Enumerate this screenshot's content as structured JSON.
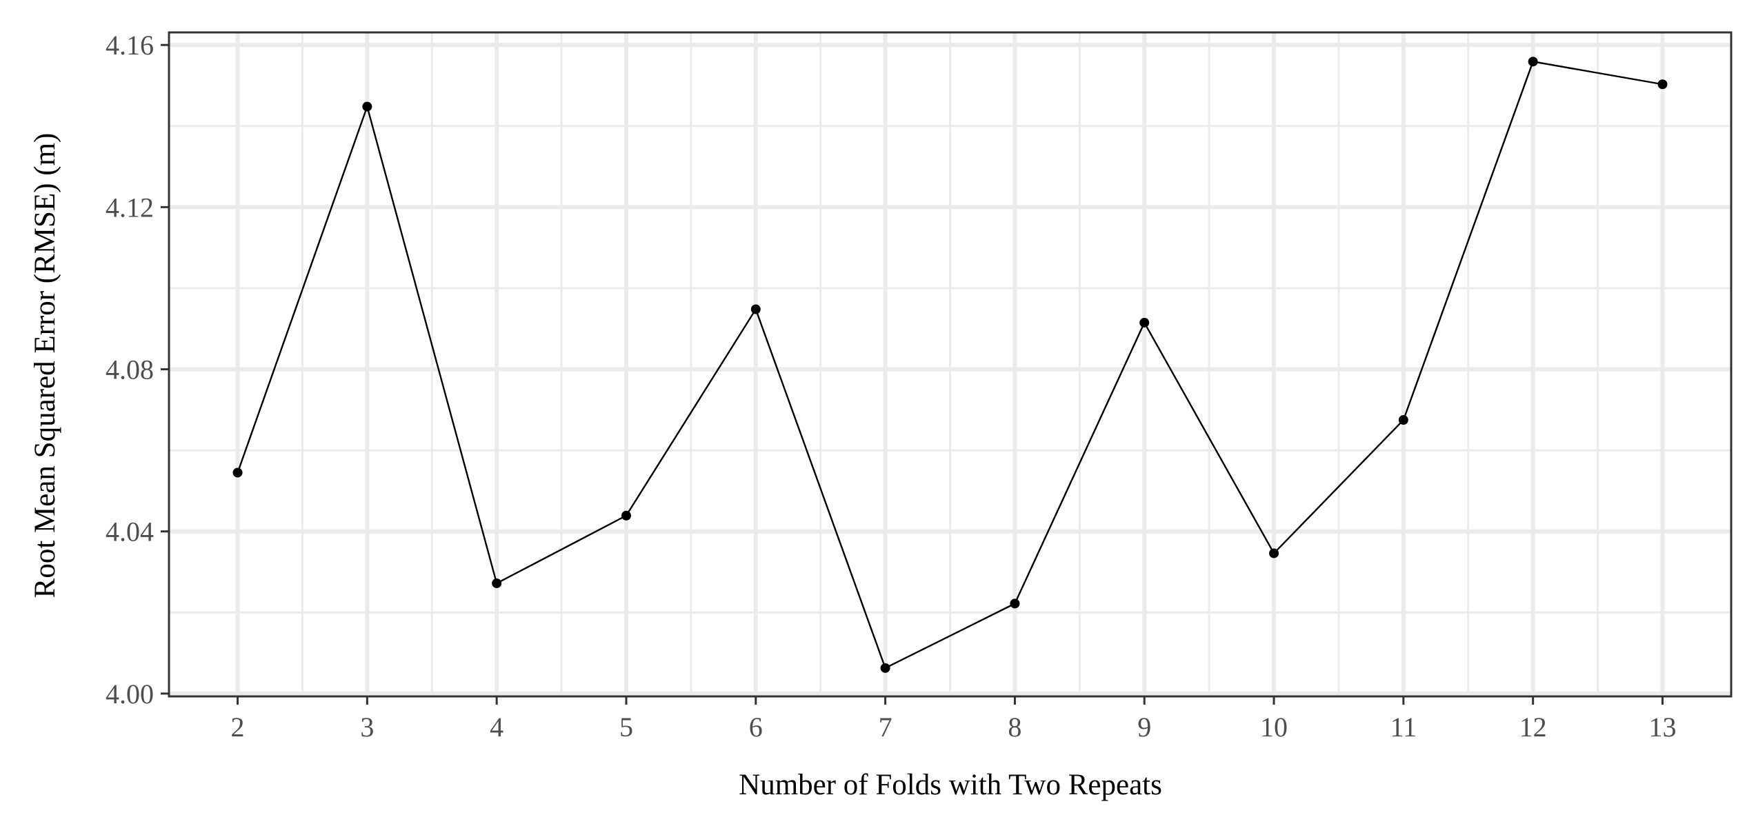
{
  "chart_data": {
    "type": "line",
    "title": "",
    "xlabel": "Number of Folds with Two Repeats",
    "ylabel": "Root Mean Squared Error (RMSE) (m)",
    "x": [
      2,
      3,
      4,
      5,
      6,
      7,
      8,
      9,
      10,
      11,
      12,
      13
    ],
    "series": [
      {
        "values": [
          4.0545,
          4.1448,
          4.0272,
          4.0439,
          4.0948,
          4.0063,
          4.0222,
          4.0915,
          4.0346,
          4.0675,
          4.1559,
          4.1503
        ]
      }
    ],
    "xlim": [
      1.47,
      13.53
    ],
    "ylim": [
      3.9993,
      4.1631
    ],
    "x_ticks": [
      2,
      3,
      4,
      5,
      6,
      7,
      8,
      9,
      10,
      11,
      12,
      13
    ],
    "x_tick_labels": [
      "2",
      "3",
      "4",
      "5",
      "6",
      "7",
      "8",
      "9",
      "10",
      "11",
      "12",
      "13"
    ],
    "y_ticks": [
      4.0,
      4.04,
      4.08,
      4.12,
      4.16
    ],
    "y_tick_labels": [
      "4.00",
      "4.04",
      "4.08",
      "4.12",
      "4.16"
    ],
    "grid": true,
    "legend": "none",
    "colors": {
      "line": "#000000",
      "grid_major": "#ebebeb",
      "grid_minor": "#ebebeb",
      "panel_border": "#333333",
      "tick_text": "#4d4d4d"
    }
  }
}
